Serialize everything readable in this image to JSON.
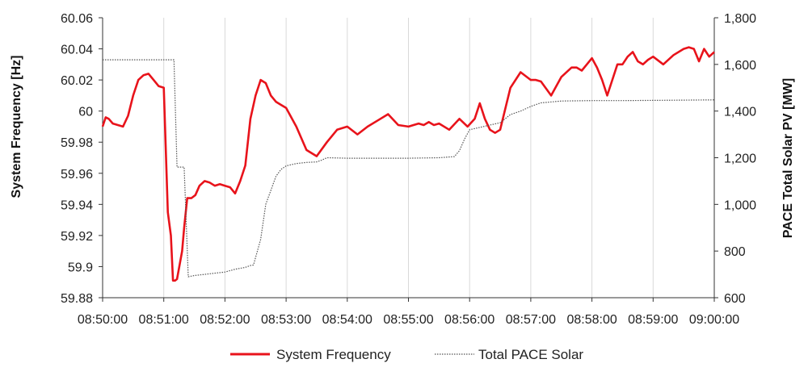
{
  "chart_data": {
    "type": "line",
    "x_ticks": [
      "08:50:00",
      "08:51:00",
      "08:52:00",
      "08:53:00",
      "08:54:00",
      "08:55:00",
      "08:56:00",
      "08:57:00",
      "08:58:00",
      "08:59:00",
      "09:00:00"
    ],
    "y_left_ticks": [
      "60.06",
      "60.04",
      "60.02",
      "60",
      "59.98",
      "59.96",
      "59.94",
      "59.92",
      "59.9",
      "59.88"
    ],
    "y_right_ticks": [
      "1,800",
      "1,600",
      "1,400",
      "1,200",
      "1,000",
      "800",
      "600"
    ],
    "ylabel_left": "System Frequency [Hz]",
    "ylabel_right": "PACE Total Solar PV [MW]",
    "xlim": [
      "08:50:00",
      "09:00:00"
    ],
    "ylim_left": [
      59.88,
      60.06
    ],
    "ylim_right": [
      600,
      1800
    ],
    "grid": "vertical",
    "legend_position": "bottom",
    "colors": {
      "frequency": "#e8131b",
      "solar": "#555555",
      "grid": "#d9d9d9"
    },
    "series": [
      {
        "name": "System Frequency",
        "axis": "left",
        "style": "solid",
        "x": [
          "08:50:00",
          "08:50:03",
          "08:50:06",
          "08:50:10",
          "08:50:15",
          "08:50:20",
          "08:50:25",
          "08:50:30",
          "08:50:35",
          "08:50:40",
          "08:50:45",
          "08:50:50",
          "08:50:55",
          "08:51:00",
          "08:51:04",
          "08:51:07",
          "08:51:09",
          "08:51:11",
          "08:51:13",
          "08:51:18",
          "08:51:20",
          "08:51:23",
          "08:51:27",
          "08:51:31",
          "08:51:35",
          "08:51:40",
          "08:51:45",
          "08:51:50",
          "08:51:55",
          "08:52:00",
          "08:52:05",
          "08:52:10",
          "08:52:15",
          "08:52:20",
          "08:52:25",
          "08:52:30",
          "08:52:35",
          "08:52:40",
          "08:52:45",
          "08:52:50",
          "08:52:55",
          "08:53:00",
          "08:53:10",
          "08:53:20",
          "08:53:30",
          "08:53:40",
          "08:53:50",
          "08:54:00",
          "08:54:10",
          "08:54:20",
          "08:54:30",
          "08:54:40",
          "08:54:50",
          "08:55:00",
          "08:55:10",
          "08:55:15",
          "08:55:20",
          "08:55:25",
          "08:55:30",
          "08:55:40",
          "08:55:50",
          "08:55:58",
          "08:56:05",
          "08:56:10",
          "08:56:15",
          "08:56:20",
          "08:56:25",
          "08:56:30",
          "08:56:40",
          "08:56:50",
          "08:57:00",
          "08:57:05",
          "08:57:10",
          "08:57:20",
          "08:57:30",
          "08:57:40",
          "08:57:45",
          "08:57:50",
          "08:57:55",
          "08:58:00",
          "08:58:05",
          "08:58:10",
          "08:58:15",
          "08:58:20",
          "08:58:25",
          "08:58:30",
          "08:58:35",
          "08:58:40",
          "08:58:45",
          "08:58:50",
          "08:58:55",
          "08:59:00",
          "08:59:10",
          "08:59:20",
          "08:59:30",
          "08:59:35",
          "08:59:40",
          "08:59:45",
          "08:59:50",
          "08:59:55",
          "09:00:00"
        ],
        "y": [
          59.99,
          59.996,
          59.995,
          59.992,
          59.991,
          59.99,
          59.997,
          60.01,
          60.02,
          60.023,
          60.024,
          60.02,
          60.016,
          60.015,
          59.935,
          59.92,
          59.891,
          59.891,
          59.892,
          59.91,
          59.925,
          59.944,
          59.944,
          59.946,
          59.952,
          59.955,
          59.954,
          59.952,
          59.953,
          59.952,
          59.951,
          59.947,
          59.955,
          59.965,
          59.995,
          60.01,
          60.02,
          60.018,
          60.01,
          60.006,
          60.004,
          60.002,
          59.99,
          59.975,
          59.971,
          59.98,
          59.988,
          59.99,
          59.985,
          59.99,
          59.994,
          59.998,
          59.991,
          59.99,
          59.992,
          59.991,
          59.993,
          59.991,
          59.992,
          59.988,
          59.995,
          59.99,
          59.995,
          60.005,
          59.995,
          59.988,
          59.986,
          59.988,
          60.015,
          60.025,
          60.02,
          60.02,
          60.019,
          60.01,
          60.022,
          60.028,
          60.028,
          60.026,
          60.03,
          60.034,
          60.028,
          60.02,
          60.01,
          60.02,
          60.03,
          60.03,
          60.035,
          60.038,
          60.032,
          60.03,
          60.033,
          60.035,
          60.03,
          60.036,
          60.04,
          60.041,
          60.04,
          60.032,
          60.04,
          60.035,
          60.038
        ]
      },
      {
        "name": "Total PACE Solar",
        "axis": "right",
        "style": "dotted",
        "x": [
          "08:50:00",
          "08:51:10",
          "08:51:13",
          "08:51:17",
          "08:51:20",
          "08:51:24",
          "08:51:30",
          "08:51:40",
          "08:51:50",
          "08:52:00",
          "08:52:10",
          "08:52:20",
          "08:52:25",
          "08:52:28",
          "08:52:35",
          "08:52:40",
          "08:52:45",
          "08:52:50",
          "08:52:55",
          "08:53:00",
          "08:53:10",
          "08:53:20",
          "08:53:30",
          "08:53:35",
          "08:53:40",
          "08:54:00",
          "08:54:30",
          "08:55:00",
          "08:55:30",
          "08:55:45",
          "08:55:50",
          "08:55:55",
          "08:56:00",
          "08:56:10",
          "08:56:20",
          "08:56:30",
          "08:56:40",
          "08:56:50",
          "08:57:00",
          "08:57:10",
          "08:57:30",
          "08:58:00",
          "08:58:30",
          "08:59:00",
          "08:59:30",
          "09:00:00"
        ],
        "y": [
          1620,
          1620,
          1160,
          1160,
          1160,
          690,
          695,
          700,
          705,
          710,
          722,
          730,
          738,
          740,
          850,
          1000,
          1060,
          1120,
          1150,
          1165,
          1175,
          1180,
          1182,
          1190,
          1200,
          1198,
          1198,
          1198,
          1200,
          1205,
          1230,
          1280,
          1320,
          1330,
          1340,
          1350,
          1385,
          1400,
          1420,
          1435,
          1443,
          1445,
          1445,
          1446,
          1447,
          1448
        ]
      }
    ]
  }
}
